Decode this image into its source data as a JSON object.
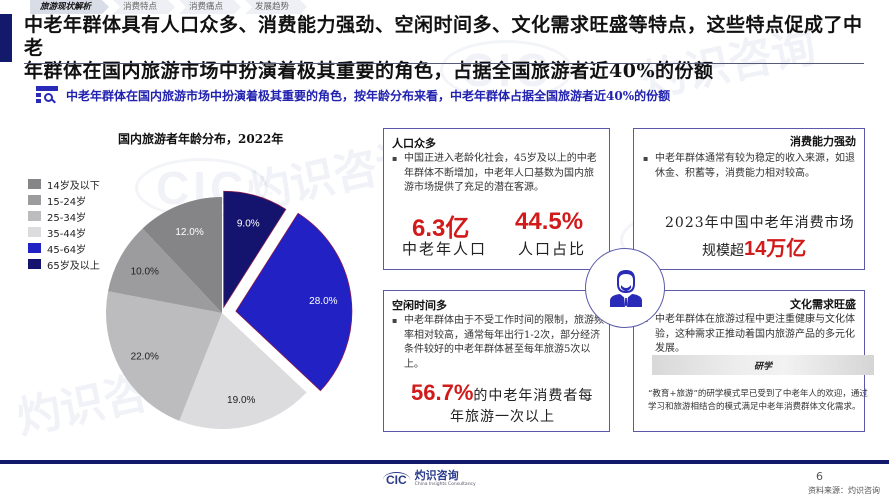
{
  "nav": {
    "tabs": [
      {
        "label": "旅游现状解析",
        "active": true
      },
      {
        "label": "消费特点",
        "active": false
      },
      {
        "label": "消费痛点",
        "active": false
      },
      {
        "label": "发展趋势",
        "active": false
      }
    ]
  },
  "header": {
    "title_line1": "中老年群体具有人口众多、消费能力强劲、空闲时间多、文化需求旺盛等特点，这些特点促成了中老",
    "title_line2": "年群体在国内旅游市场中扮演着极其重要的角色，占据全国旅游者近40%的份额"
  },
  "subhead": {
    "icon": "search-list-icon",
    "text": "中老年群体在国内旅游市场中扮演着极其重要的角色，按年龄分布来看，中老年群体占据全国旅游者近40%的份额"
  },
  "chart_data": {
    "type": "pie",
    "title": "国内旅游者年龄分布，2022年",
    "start_angle_deg": 0,
    "direction": "clockwise",
    "legend_position": "left",
    "slices": [
      {
        "label": "65岁及以上",
        "value": 9.0,
        "display": "9.0%",
        "color": "#14146e",
        "exploded": 6,
        "text_color": "#ffffff"
      },
      {
        "label": "45-64岁",
        "value": 28.0,
        "display": "28.0%",
        "color": "#2121c4",
        "exploded": 14,
        "text_color": "#ffffff"
      },
      {
        "label": "35-44岁",
        "value": 19.0,
        "display": "19.0%",
        "color": "#dcdcde",
        "exploded": 0,
        "text_color": "#222222"
      },
      {
        "label": "25-34岁",
        "value": 22.0,
        "display": "22.0%",
        "color": "#bcbcbe",
        "exploded": 0,
        "text_color": "#222222"
      },
      {
        "label": "15-24岁",
        "value": 10.0,
        "display": "10.0%",
        "color": "#9c9c9e",
        "exploded": 0,
        "text_color": "#222222"
      },
      {
        "label": "14岁及以下",
        "value": 12.0,
        "display": "12.0%",
        "color": "#858587",
        "exploded": 0,
        "text_color": "#ffffff"
      }
    ],
    "legend_order": [
      "14岁及以下",
      "15-24岁",
      "25-34岁",
      "35-44岁",
      "45-64岁",
      "65岁及以上"
    ]
  },
  "cards": {
    "population": {
      "title": "人口众多",
      "body": "中国正进入老龄化社会，45岁及以上的中老年群体不断增加，中老年人口基数为国内旅游市场提供了充足的潜在客源。",
      "stat1_value": "6.3亿",
      "stat1_label": "中老年人口",
      "stat2_value": "44.5%",
      "stat2_label": "人口占比"
    },
    "spending": {
      "title": "消费能力强劲",
      "body": "中老年群体通常有较为稳定的收入来源，如退休金、积蓄等，消费能力相对较高。",
      "highlight_line1": "2023年中国中老年消费市场",
      "highlight_prefix": "规模超",
      "highlight_value": "14万亿"
    },
    "leisure": {
      "title": "空闲时间多",
      "body": "中老年群体由于不受工作时间的限制，旅游频率相对较高，通常每年出行1-2次，部分经济条件较好的中老年群体甚至每年旅游5次以上。",
      "highlight_value": "56.7%",
      "highlight_suffix": "的中老年消费者每",
      "highlight_line2": "年旅游一次以上"
    },
    "culture": {
      "title": "文化需求旺盛",
      "body": "中老年群体在旅游过程中更注重健康与文化体验，这种需求正推动着国内旅游产品的多元化发展。",
      "banner": "研学",
      "banner_text": "“教育+旅游”的研学模式早已受到了中老年人的欢迎，通过学习和旅游相结合的模式满足中老年消费群体文化需求。"
    }
  },
  "hub": {
    "icon": "elderly-person-icon",
    "color": "#2a2ab8"
  },
  "footer": {
    "logo_mark": "CIC",
    "logo_cn": "灼识咨询",
    "logo_en": "China Insights Consultancy",
    "page_number": "6",
    "source": "资料来源：灼识咨询"
  },
  "watermark": {
    "cn": "灼识咨询",
    "en": "China Insights Consultancy",
    "mark": "CIC"
  }
}
